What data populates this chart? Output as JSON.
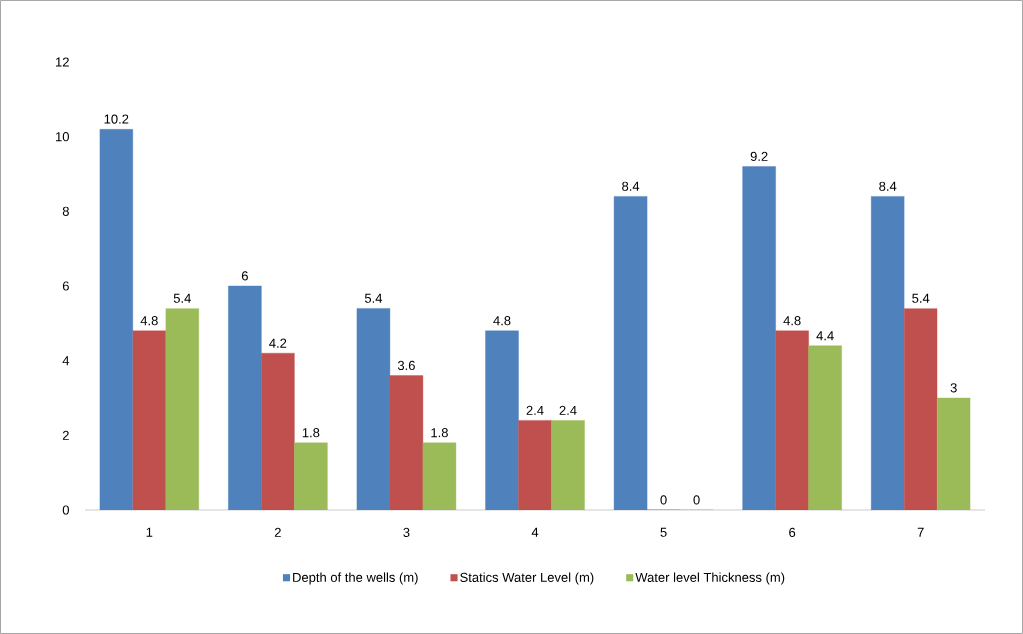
{
  "chart_data": {
    "type": "bar",
    "categories": [
      "1",
      "2",
      "3",
      "4",
      "5",
      "6",
      "7"
    ],
    "series": [
      {
        "name": "Depth of the wells (m)",
        "color": "#4f81bd",
        "values": [
          10.2,
          6,
          5.4,
          4.8,
          8.4,
          9.2,
          8.4
        ]
      },
      {
        "name": "Statics Water Level (m)",
        "color": "#c0504d",
        "values": [
          4.8,
          4.2,
          3.6,
          2.4,
          0,
          4.8,
          5.4
        ]
      },
      {
        "name": "Water level Thickness (m)",
        "color": "#9bbb59",
        "values": [
          5.4,
          1.8,
          1.8,
          2.4,
          0,
          4.4,
          3
        ]
      }
    ],
    "ylim": [
      0,
      12
    ],
    "yticks": [
      0,
      2,
      4,
      6,
      8,
      10,
      12
    ],
    "grid": false,
    "legend": "bottom",
    "data_labels": true
  }
}
